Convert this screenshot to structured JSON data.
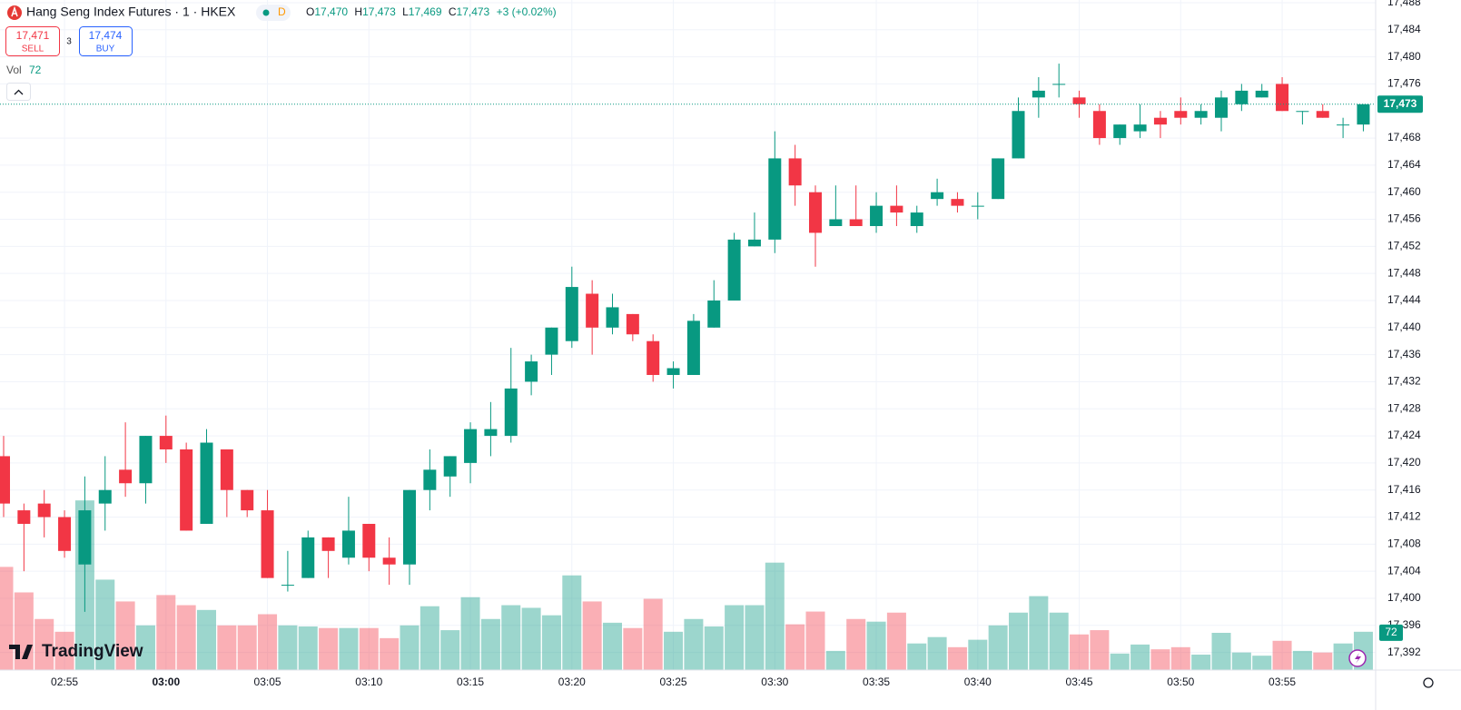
{
  "header": {
    "title": "Hang Seng Index Futures · 1 · HKEX",
    "badge": "D",
    "ohlc": [
      {
        "label": "O",
        "value": "17,470"
      },
      {
        "label": "H",
        "value": "17,473"
      },
      {
        "label": "L",
        "value": "17,469"
      },
      {
        "label": "C",
        "value": "17,473"
      }
    ],
    "change": "+3 (+0.02%)",
    "sell": {
      "price": "17,471",
      "label": "SELL"
    },
    "spread": "3",
    "buy": {
      "price": "17,474",
      "label": "BUY"
    },
    "volume_label": "Vol",
    "logo": "TradingView"
  },
  "chart_data": {
    "type": "candlestick",
    "categories": [
      null,
      null,
      null,
      "02:55",
      null,
      null,
      null,
      null,
      "03:00",
      null,
      null,
      null,
      null,
      "03:05",
      null,
      null,
      null,
      null,
      "03:10",
      null,
      null,
      null,
      null,
      "03:15",
      null,
      null,
      null,
      null,
      "03:20",
      null,
      null,
      null,
      null,
      "03:25",
      null,
      null,
      null,
      null,
      "03:30",
      null,
      null,
      null,
      null,
      "03:35",
      null,
      null,
      null,
      null,
      "03:40",
      null,
      null,
      null,
      null,
      "03:45",
      null,
      null,
      null,
      null,
      "03:50",
      null,
      null,
      null,
      null,
      "03:55",
      null,
      null,
      null,
      null
    ],
    "open": [
      17421,
      17413,
      17414,
      17412,
      17405,
      17414,
      17419,
      17417,
      17424,
      17422,
      17411,
      17422,
      17416,
      17413,
      17402,
      17403,
      17409,
      17406,
      17411,
      17406,
      17405,
      17416,
      17418,
      17420,
      17424,
      17424,
      17432,
      17436,
      17438,
      17445,
      17440,
      17442,
      17438,
      17433,
      17433,
      17440,
      17444,
      17452,
      17453,
      17465,
      17460,
      17455,
      17456,
      17455,
      17458,
      17455,
      17459,
      17459,
      17458,
      17459,
      17465,
      17474,
      17476,
      17474,
      17472,
      17468,
      17469,
      17471,
      17472,
      17471,
      17471,
      17473,
      17474,
      17476,
      17472,
      17472,
      17470,
      17470
    ],
    "high": [
      17424,
      17414,
      17416,
      17413,
      17418,
      17421,
      17426,
      17424,
      17427,
      17423,
      17425,
      17422,
      17416,
      17416,
      17407,
      17410,
      17409,
      17415,
      17411,
      17409,
      17416,
      17422,
      17421,
      17426,
      17429,
      17437,
      17436,
      17440,
      17449,
      17447,
      17445,
      17442,
      17439,
      17435,
      17442,
      17447,
      17454,
      17457,
      17469,
      17467,
      17461,
      17461,
      17461,
      17460,
      17461,
      17458,
      17462,
      17460,
      17460,
      17465,
      17474,
      17477,
      17479,
      17475,
      17473,
      17470,
      17473,
      17472,
      17474,
      17473,
      17475,
      17476,
      17476,
      17477,
      17472,
      17473,
      17471,
      17473
    ],
    "low": [
      17412,
      17404,
      17409,
      17406,
      17398,
      17410,
      17415,
      17414,
      17420,
      17410,
      17411,
      17412,
      17412,
      17403,
      17401,
      17403,
      17403,
      17405,
      17404,
      17402,
      17402,
      17413,
      17415,
      17417,
      17421,
      17423,
      17430,
      17433,
      17437,
      17436,
      17439,
      17438,
      17432,
      17431,
      17433,
      17440,
      17444,
      17452,
      17451,
      17458,
      17449,
      17455,
      17455,
      17454,
      17455,
      17454,
      17458,
      17457,
      17456,
      17459,
      17465,
      17471,
      17474,
      17471,
      17467,
      17467,
      17468,
      17468,
      17470,
      17470,
      17469,
      17472,
      17474,
      17472,
      17470,
      17471,
      17468,
      17469
    ],
    "close": [
      17414,
      17411,
      17412,
      17407,
      17413,
      17416,
      17417,
      17424,
      17422,
      17410,
      17423,
      17416,
      17413,
      17403,
      17402,
      17409,
      17407,
      17410,
      17406,
      17405,
      17416,
      17419,
      17421,
      17425,
      17425,
      17431,
      17435,
      17440,
      17446,
      17440,
      17443,
      17439,
      17433,
      17434,
      17441,
      17444,
      17453,
      17453,
      17465,
      17461,
      17454,
      17456,
      17455,
      17458,
      17457,
      17457,
      17460,
      17458,
      17458,
      17465,
      17472,
      17475,
      17476,
      17473,
      17468,
      17470,
      17470,
      17470,
      17471,
      17472,
      17474,
      17475,
      17475,
      17472,
      17472,
      17471,
      17470,
      17473
    ],
    "volume": [
      194,
      146,
      96,
      72,
      319,
      170,
      129,
      84,
      141,
      122,
      113,
      84,
      84,
      105,
      84,
      82,
      79,
      79,
      79,
      60,
      84,
      120,
      75,
      137,
      96,
      122,
      117,
      103,
      178,
      129,
      89,
      79,
      134,
      72,
      96,
      82,
      122,
      122,
      202,
      86,
      110,
      36,
      96,
      91,
      108,
      50,
      62,
      43,
      57,
      84,
      108,
      139,
      108,
      67,
      75,
      31,
      48,
      39,
      43,
      29,
      70,
      33,
      27,
      55,
      36,
      33,
      50,
      72
    ],
    "volume_ylim": [
      0,
      1260
    ],
    "ylim": [
      17389.4,
      17488.4
    ],
    "yticks": [
      {
        "value": 17392,
        "label": "17,392"
      },
      {
        "value": 17396,
        "label": "17,396"
      },
      {
        "value": 17400,
        "label": "17,400"
      },
      {
        "value": 17404,
        "label": "17,404"
      },
      {
        "value": 17408,
        "label": "17,408"
      },
      {
        "value": 17412,
        "label": "17,412"
      },
      {
        "value": 17416,
        "label": "17,416"
      },
      {
        "value": 17420,
        "label": "17,420"
      },
      {
        "value": 17424,
        "label": "17,424"
      },
      {
        "value": 17428,
        "label": "17,428"
      },
      {
        "value": 17432,
        "label": "17,432"
      },
      {
        "value": 17436,
        "label": "17,436"
      },
      {
        "value": 17440,
        "label": "17,440"
      },
      {
        "value": 17444,
        "label": "17,444"
      },
      {
        "value": 17448,
        "label": "17,448"
      },
      {
        "value": 17452,
        "label": "17,452"
      },
      {
        "value": 17456,
        "label": "17,456"
      },
      {
        "value": 17460,
        "label": "17,460"
      },
      {
        "value": 17464,
        "label": "17,464"
      },
      {
        "value": 17468,
        "label": "17,468"
      },
      {
        "value": 17476,
        "label": "17,476"
      },
      {
        "value": 17480,
        "label": "17,480"
      },
      {
        "value": 17484,
        "label": "17,484"
      },
      {
        "value": 17488,
        "label": "17,488"
      }
    ],
    "last_price": {
      "value": 17473,
      "label": "17,473"
    },
    "up_color": "#089981",
    "down_color": "#f23645",
    "grid": true
  }
}
